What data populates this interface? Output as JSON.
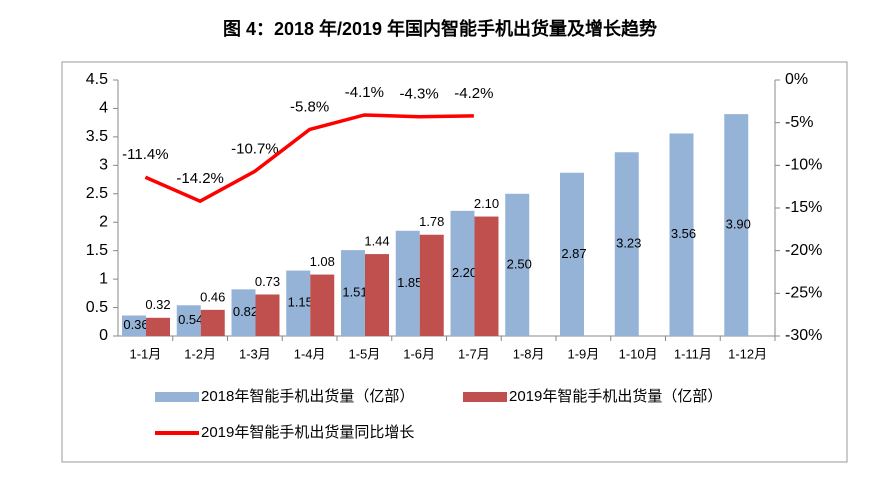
{
  "chart_data": {
    "type": "bar",
    "title": "图 4：2018 年/2019 年国内智能手机出货量及增长趋势",
    "categories": [
      "1-1月",
      "1-2月",
      "1-3月",
      "1-4月",
      "1-5月",
      "1-6月",
      "1-7月",
      "1-8月",
      "1-9月",
      "1-10月",
      "1-11月",
      "1-12月"
    ],
    "series": [
      {
        "name": "2018年智能手机出货量（亿部）",
        "type": "bar",
        "color": "#95b3d7",
        "values": [
          0.36,
          0.54,
          0.82,
          1.15,
          1.51,
          1.85,
          2.2,
          2.5,
          2.87,
          3.23,
          3.56,
          3.9
        ],
        "value_labels": [
          "0.36",
          "0.54",
          "0.82",
          "1.15",
          "1.51",
          "1.85",
          "2.20",
          "2.50",
          "2.87",
          "3.23",
          "3.56",
          "3.90"
        ]
      },
      {
        "name": "2019年智能手机出货量（亿部）",
        "type": "bar",
        "color": "#c0504d",
        "values": [
          0.32,
          0.46,
          0.73,
          1.08,
          1.44,
          1.78,
          2.1,
          null,
          null,
          null,
          null,
          null
        ],
        "value_labels": [
          "0.32",
          "0.46",
          "0.73",
          "1.08",
          "1.44",
          "1.78",
          "2.10",
          null,
          null,
          null,
          null,
          null
        ]
      },
      {
        "name": "2019年智能手机出货量同比增长",
        "type": "line",
        "axis": "y2",
        "color": "#ff0000",
        "values": [
          -11.4,
          -14.2,
          -10.7,
          -5.8,
          -4.1,
          -4.3,
          -4.2,
          null,
          null,
          null,
          null,
          null
        ],
        "value_labels": [
          "-11.4%",
          "-14.2%",
          "-10.7%",
          "-5.8%",
          "-4.1%",
          "-4.3%",
          "-4.2%",
          null,
          null,
          null,
          null,
          null
        ]
      }
    ],
    "ylim": [
      0,
      4.5
    ],
    "yticks": [
      0,
      0.5,
      1,
      1.5,
      2,
      2.5,
      3,
      3.5,
      4,
      4.5
    ],
    "y2lim": [
      -30,
      0
    ],
    "y2ticks": [
      {
        "value": 0,
        "label": "0%"
      },
      {
        "value": -5,
        "label": "-5%"
      },
      {
        "value": -10,
        "label": "-10%"
      },
      {
        "value": -15,
        "label": "-15%"
      },
      {
        "value": -20,
        "label": "-20%"
      },
      {
        "value": -25,
        "label": "-25%"
      },
      {
        "value": -30,
        "label": "-30%"
      }
    ]
  }
}
